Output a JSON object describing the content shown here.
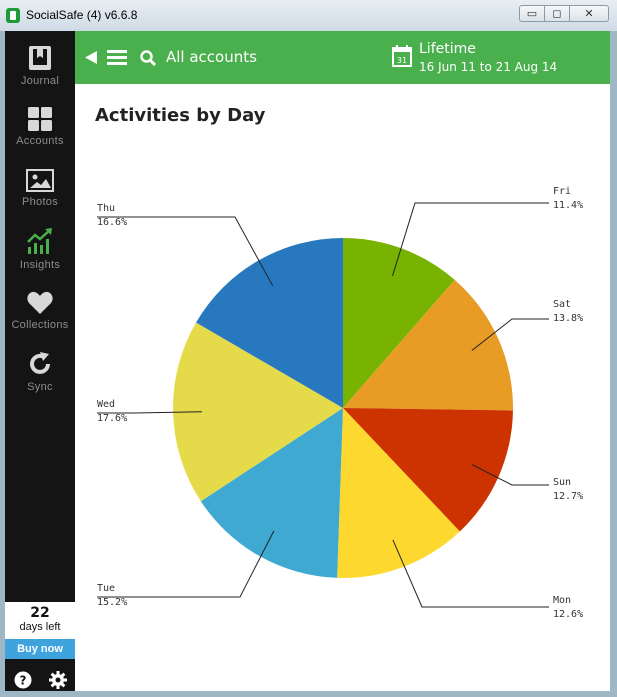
{
  "window": {
    "title": "SocialSafe (4) v6.6.8",
    "controls": {
      "minimize": "▭",
      "maximize": "◻",
      "close": "✕"
    }
  },
  "sidebar": {
    "items": [
      {
        "label": "Journal",
        "icon": "journal-icon",
        "active": false
      },
      {
        "label": "Accounts",
        "icon": "grid-icon",
        "active": false
      },
      {
        "label": "Photos",
        "icon": "photo-icon",
        "active": false
      },
      {
        "label": "Insights",
        "icon": "chart-up-icon",
        "active": true
      },
      {
        "label": "Collections",
        "icon": "heart-icon",
        "active": false
      },
      {
        "label": "Sync",
        "icon": "sync-icon",
        "active": false
      }
    ],
    "trial": {
      "days": "22",
      "days_text": "days left",
      "buy_label": "Buy now"
    },
    "footer_icons": [
      "help-icon",
      "gear-icon"
    ]
  },
  "topbar": {
    "accounts_label": "All accounts",
    "range_title": "Lifetime",
    "range_dates": "16 Jun 11 to 21 Aug 14",
    "calendar_day": "31"
  },
  "page": {
    "title": "Activities by Day"
  },
  "colors": {
    "accent": "#4ab04d",
    "sidebar_bg": "#141414",
    "active_icon": "#4ab04d",
    "buy_button": "#3fa4de"
  },
  "chart_data": {
    "type": "pie",
    "title": "Activities by Day",
    "slices": [
      {
        "label": "Fri",
        "value": 11.4,
        "pct": "11.4%",
        "color": "#77b300"
      },
      {
        "label": "Sat",
        "value": 13.8,
        "pct": "13.8%",
        "color": "#e89b25"
      },
      {
        "label": "Sun",
        "value": 12.7,
        "pct": "12.7%",
        "color": "#cc3300"
      },
      {
        "label": "Mon",
        "value": 12.6,
        "pct": "12.6%",
        "color": "#fdd930"
      },
      {
        "label": "Tue",
        "value": 15.2,
        "pct": "15.2%",
        "color": "#3fa9d2"
      },
      {
        "label": "Wed",
        "value": 17.6,
        "pct": "17.6%",
        "color": "#e5db4a"
      },
      {
        "label": "Thu",
        "value": 16.6,
        "pct": "16.6%",
        "color": "#2878c0"
      }
    ]
  }
}
